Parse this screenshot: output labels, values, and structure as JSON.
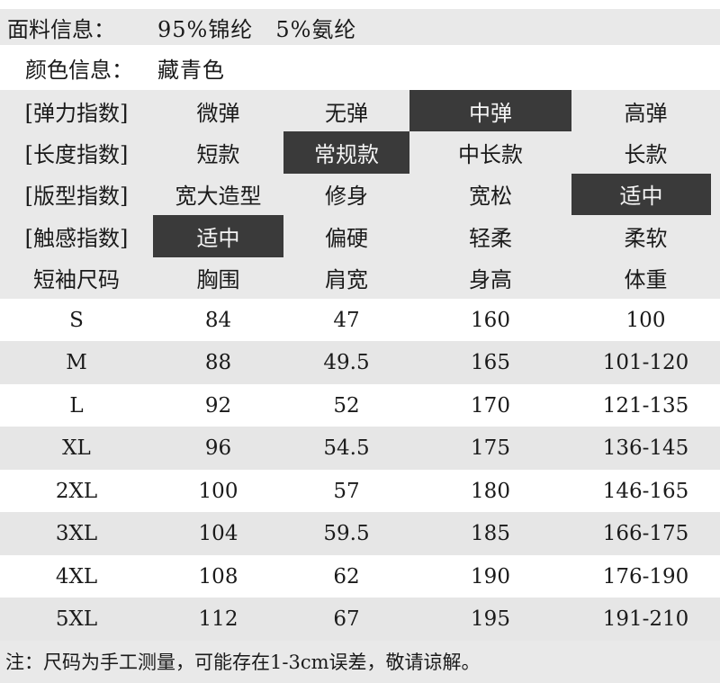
{
  "fabric": {
    "label": "面料信息：",
    "value": "95%锦纶　5%氨纶"
  },
  "color": {
    "label": "颜色信息：",
    "value": "藏青色"
  },
  "indices": [
    {
      "label": "[弹力指数]",
      "options": [
        "微弹",
        "无弹",
        "中弹",
        "高弹"
      ],
      "active": 2
    },
    {
      "label": "[长度指数]",
      "options": [
        "短款",
        "常规款",
        "中长款",
        "长款"
      ],
      "active": 1
    },
    {
      "label": "[版型指数]",
      "options": [
        "宽大造型",
        "修身",
        "宽松",
        "适中"
      ],
      "active": 3
    },
    {
      "label": "[触感指数]",
      "options": [
        "适中",
        "偏硬",
        "轻柔",
        "柔软"
      ],
      "active": 0
    }
  ],
  "size_table": {
    "headers": [
      "短袖尺码",
      "胸围",
      "肩宽",
      "身高",
      "体重"
    ],
    "rows": [
      [
        "S",
        "84",
        "47",
        "160",
        "100"
      ],
      [
        "M",
        "88",
        "49.5",
        "165",
        "101-120"
      ],
      [
        "L",
        "92",
        "52",
        "170",
        "121-135"
      ],
      [
        "XL",
        "96",
        "54.5",
        "175",
        "136-145"
      ],
      [
        "2XL",
        "100",
        "57",
        "180",
        "146-165"
      ],
      [
        "3XL",
        "104",
        "59.5",
        "185",
        "166-175"
      ],
      [
        "4XL",
        "108",
        "62",
        "190",
        "176-190"
      ],
      [
        "5XL",
        "112",
        "67",
        "195",
        "191-210"
      ]
    ]
  },
  "note": "注：尺码为手工测量，可能存在1-3cm误差，敬请谅解。",
  "colors": {
    "band_bg": "#e9e9e9",
    "row_alt_bg": "#e6e6e6",
    "active_bg": "#3a3a3a",
    "active_text": "#f5f5f5",
    "text": "#1a1a1a"
  }
}
